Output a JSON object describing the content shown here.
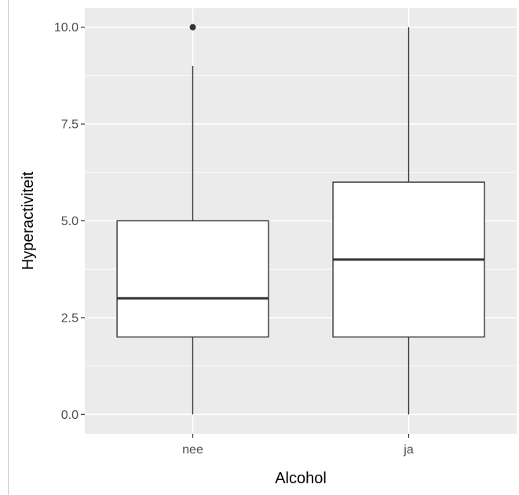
{
  "chart_data": {
    "type": "boxplot",
    "xlabel": "Alcohol",
    "ylabel": "Hyperactiviteit",
    "categories": [
      "nee",
      "ja"
    ],
    "boxes": [
      {
        "category": "nee",
        "whisker_low": 0.0,
        "q1": 2.0,
        "median": 3.0,
        "q3": 5.0,
        "whisker_high": 9.0,
        "outliers": [
          10.0
        ]
      },
      {
        "category": "ja",
        "whisker_low": 0.0,
        "q1": 2.0,
        "median": 4.0,
        "q3": 6.0,
        "whisker_high": 10.0,
        "outliers": []
      }
    ],
    "y_ticks": [
      {
        "value": 0.0,
        "label": "0.0"
      },
      {
        "value": 2.5,
        "label": "2.5"
      },
      {
        "value": 5.0,
        "label": "5.0"
      },
      {
        "value": 7.5,
        "label": "7.5"
      },
      {
        "value": 10.0,
        "label": "10.0"
      }
    ],
    "ylim": [
      -0.5,
      10.5
    ],
    "grid": true,
    "legend": "none",
    "colors": {
      "panel_background": "#ebebeb",
      "grid_line": "#ffffff",
      "box_fill": "#ffffff",
      "box_stroke": "#333333",
      "outlier": "#333333"
    }
  }
}
